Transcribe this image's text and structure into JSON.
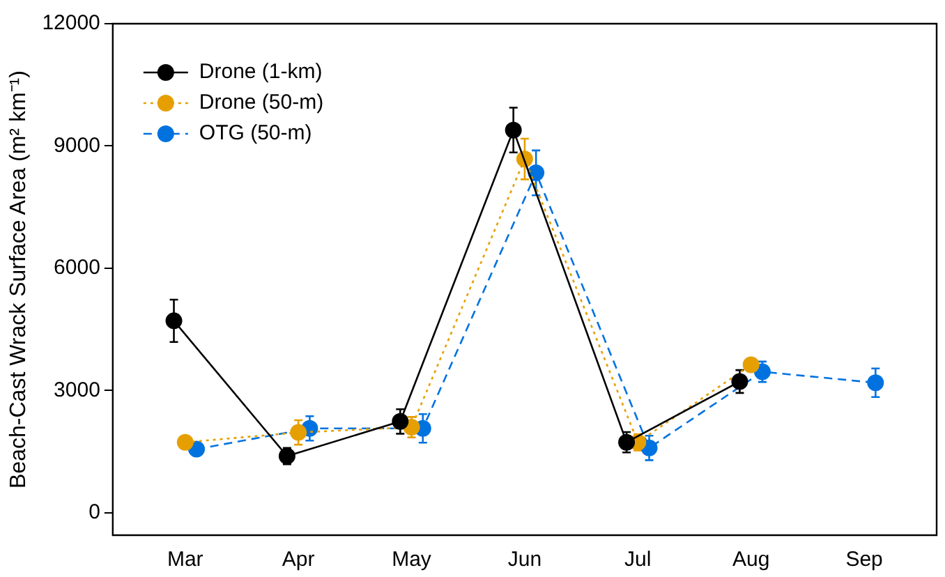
{
  "chart_data": {
    "type": "line",
    "ylabel": "Beach-Cast Wrack Surface Area (m² km⁻¹)",
    "categories": [
      "Mar",
      "Apr",
      "May",
      "Jun",
      "Jul",
      "Aug",
      "Sep"
    ],
    "series": [
      {
        "name": "Drone (1-km)",
        "color": "#000000",
        "line_style": "solid",
        "values": [
          4710,
          1390,
          2240,
          9390,
          1730,
          3220,
          null
        ],
        "errors": [
          520,
          200,
          300,
          550,
          250,
          280,
          null
        ]
      },
      {
        "name": "Drone (50-m)",
        "color": "#e69f00",
        "line_style": "dotted",
        "values": [
          1730,
          1970,
          2100,
          8680,
          1730,
          3630,
          null
        ],
        "errors": [
          null,
          300,
          250,
          500,
          200,
          150,
          null
        ]
      },
      {
        "name": "OTG (50-m)",
        "color": "#0072e0",
        "line_style": "dashed",
        "values": [
          1560,
          2070,
          2070,
          8340,
          1590,
          3460,
          3190
        ],
        "errors": [
          null,
          300,
          350,
          550,
          300,
          250,
          350
        ]
      }
    ],
    "ylim": [
      -550,
      12000
    ],
    "yticks": [
      0,
      3000,
      6000,
      9000,
      12000
    ],
    "grid": false,
    "legend": "top left",
    "marker": "circle"
  }
}
